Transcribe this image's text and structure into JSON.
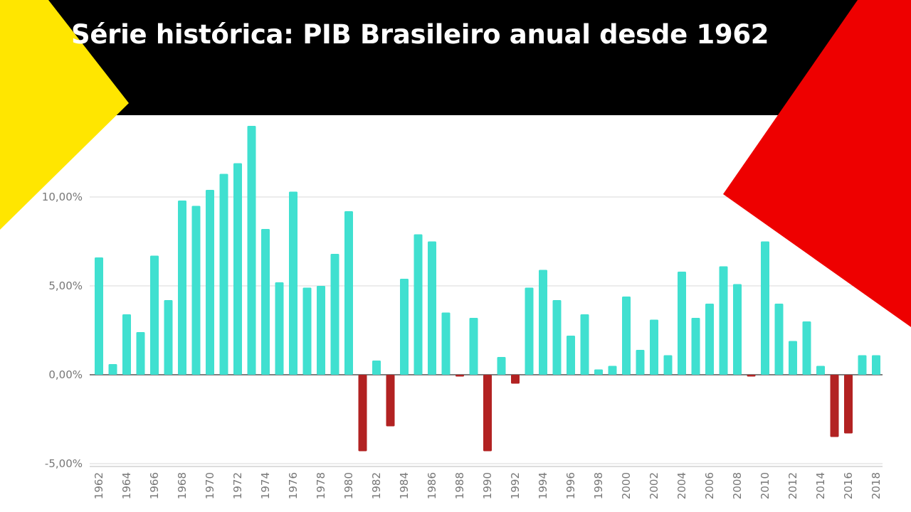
{
  "title": "Série histórica: PIB Brasileiro anual desde 1962",
  "colors": {
    "header": "#000000",
    "yellow": "#ffe600",
    "red": "#ee0000",
    "positive": "#40e0d0",
    "negative": "#b22222",
    "grid": "#d9d9d9",
    "axis": "#555555",
    "label": "#777777"
  },
  "chart_data": {
    "type": "bar",
    "title": "",
    "xlabel": "",
    "ylabel": "",
    "ylim": [
      -5,
      14
    ],
    "yticks": [
      {
        "value": -5,
        "label": "-5,00%"
      },
      {
        "value": 0,
        "label": "0,00%"
      },
      {
        "value": 5,
        "label": "5,00%"
      },
      {
        "value": 10,
        "label": "10,00%"
      }
    ],
    "grid": true,
    "legend": "none",
    "x_tick_labels": [
      "1962",
      "1964",
      "1966",
      "1968",
      "1970",
      "1972",
      "1974",
      "1976",
      "1978",
      "1980",
      "1982",
      "1984",
      "1986",
      "1988",
      "1990",
      "1992",
      "1994",
      "1996",
      "1998",
      "2000",
      "2002",
      "2004",
      "2006",
      "2008",
      "2010",
      "2012",
      "2014",
      "2016",
      "2018"
    ],
    "categories": [
      "1962",
      "1963",
      "1964",
      "1965",
      "1966",
      "1967",
      "1968",
      "1969",
      "1970",
      "1971",
      "1972",
      "1973",
      "1974",
      "1975",
      "1976",
      "1977",
      "1978",
      "1979",
      "1980",
      "1981",
      "1982",
      "1983",
      "1984",
      "1985",
      "1986",
      "1987",
      "1988",
      "1989",
      "1990",
      "1991",
      "1992",
      "1993",
      "1994",
      "1995",
      "1996",
      "1997",
      "1998",
      "1999",
      "2000",
      "2001",
      "2002",
      "2003",
      "2004",
      "2005",
      "2006",
      "2007",
      "2008",
      "2009",
      "2010",
      "2011",
      "2012",
      "2013",
      "2014",
      "2015",
      "2016",
      "2017",
      "2018"
    ],
    "values": [
      6.6,
      0.6,
      3.4,
      2.4,
      6.7,
      4.2,
      9.8,
      9.5,
      10.4,
      11.3,
      11.9,
      14.0,
      8.2,
      5.2,
      10.3,
      4.9,
      5.0,
      6.8,
      9.2,
      -4.3,
      0.8,
      -2.9,
      5.4,
      7.9,
      7.5,
      3.5,
      -0.1,
      3.2,
      -4.3,
      1.0,
      -0.5,
      4.9,
      5.9,
      4.2,
      2.2,
      3.4,
      0.3,
      0.5,
      4.4,
      1.4,
      3.1,
      1.1,
      5.8,
      3.2,
      4.0,
      6.1,
      5.1,
      -0.1,
      7.5,
      4.0,
      1.9,
      3.0,
      0.5,
      -3.5,
      -3.3,
      1.1,
      1.1
    ]
  }
}
